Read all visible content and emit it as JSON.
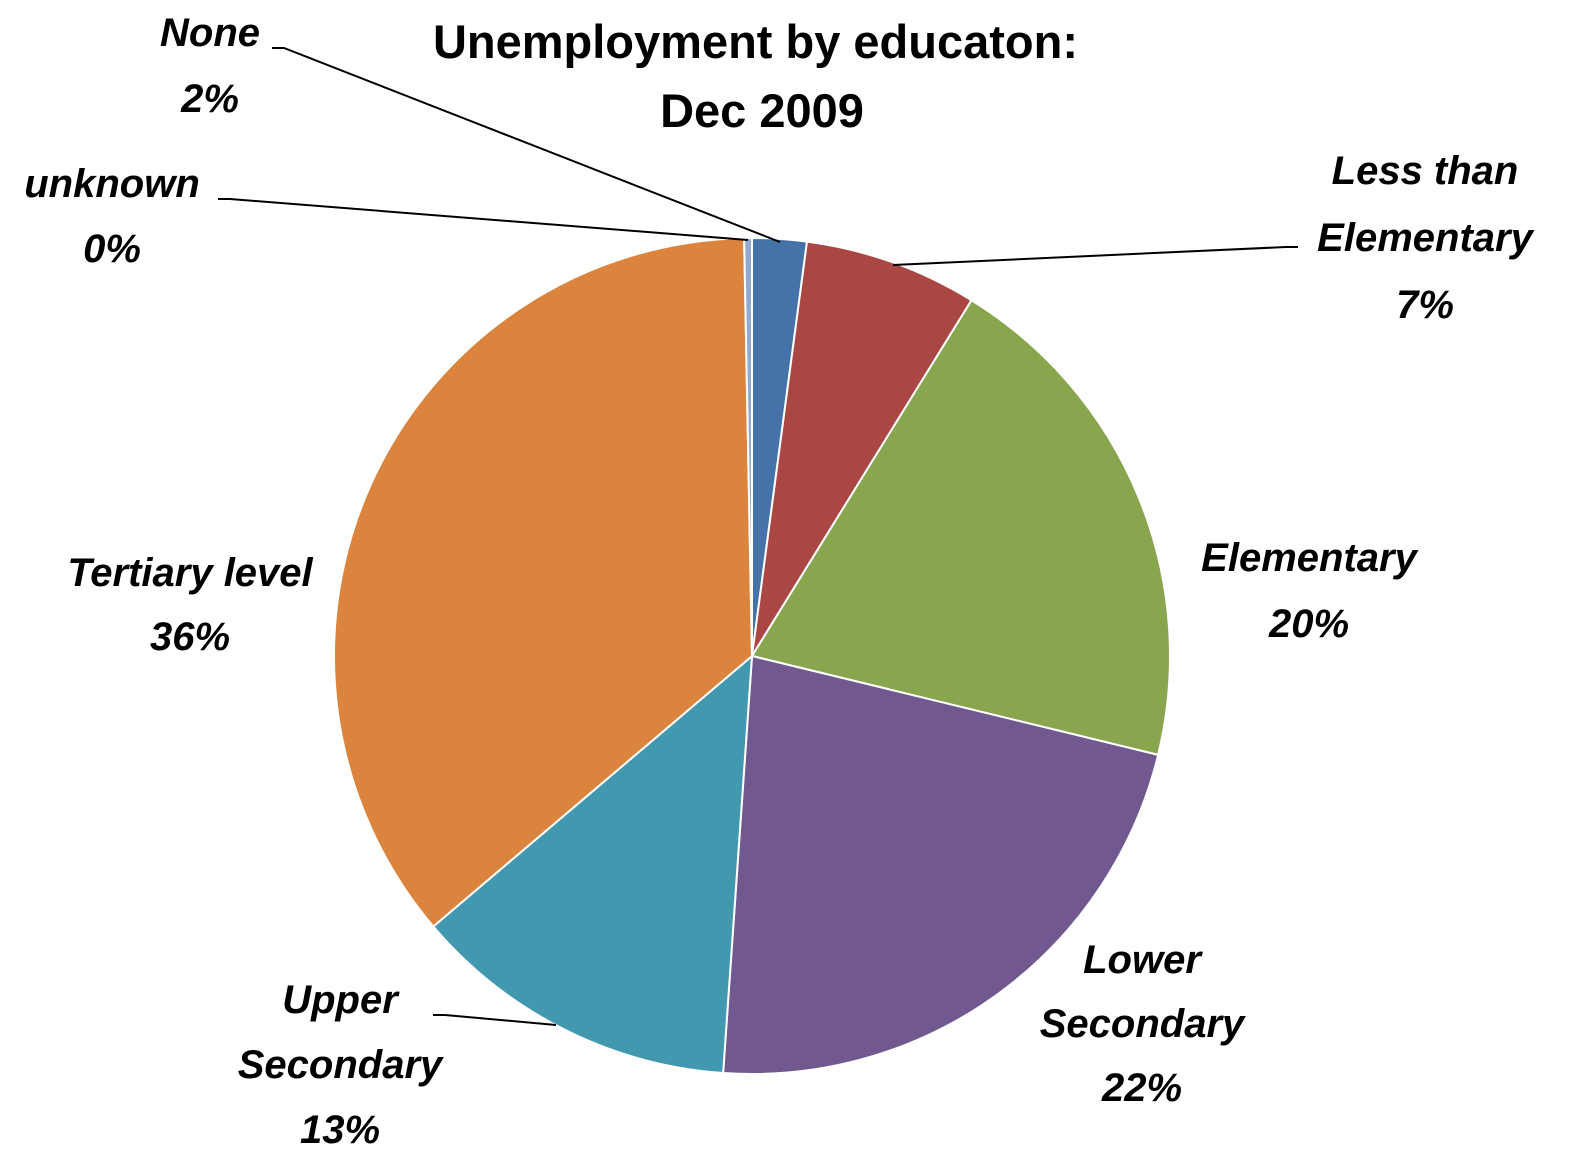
{
  "chart_data": {
    "type": "pie",
    "title": [
      "Unemployment by educaton:",
      "Dec 2009"
    ],
    "start_angle_deg": 0,
    "direction": "clockwise",
    "slices": [
      {
        "label": [
          "None"
        ],
        "percent_label": "2%",
        "value": 2.1,
        "color": "#4572A7"
      },
      {
        "label": [
          "Less than",
          "Elementary"
        ],
        "percent_label": "7%",
        "value": 6.7,
        "color": "#AA4643"
      },
      {
        "label": [
          "Elementary"
        ],
        "percent_label": "20%",
        "value": 20.0,
        "color": "#89A54E"
      },
      {
        "label": [
          "Lower",
          "Secondary"
        ],
        "percent_label": "22%",
        "value": 22.3,
        "color": "#71588F"
      },
      {
        "label": [
          "Upper",
          "Secondary"
        ],
        "percent_label": "13%",
        "value": 12.7,
        "color": "#4198AF"
      },
      {
        "label": [
          "Tertiary level"
        ],
        "percent_label": "36%",
        "value": 35.9,
        "color": "#DB843D"
      },
      {
        "label": [
          "unknown"
        ],
        "percent_label": "0%",
        "value": 0.3,
        "color": "#93A9CF"
      }
    ]
  }
}
